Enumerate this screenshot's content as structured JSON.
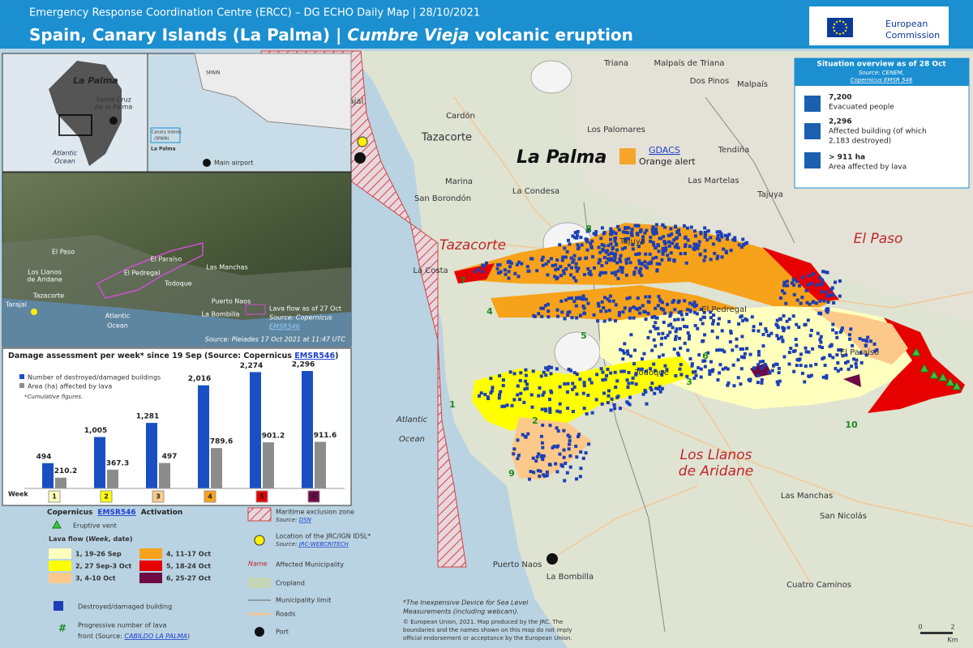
{
  "header": {
    "subtitle": "Emergency Response Coordination Centre (ERCC) – DG ECHO Daily Map | 28/10/2021",
    "title_start": "Spain, Canary Islands (La Palma) | ",
    "title_italic": "Cumbre Vieja",
    "title_end": " volcanic eruption",
    "logo_line1": "European",
    "logo_line2": "Commission"
  },
  "overview": {
    "title": "Situation overview as of 28 Oct",
    "source": "Source: CENEM,",
    "source_link": "Copernicus EMSR 546",
    "items": [
      {
        "value": "7,200",
        "label": "Evacuated people"
      },
      {
        "value": "2,296",
        "label": "Affected building (of which",
        "label2": "2,183 destroyed)"
      },
      {
        "value": "> 911 ha",
        "label": "Area affected by lava"
      }
    ]
  },
  "inset_map": {
    "island": "La Palma",
    "city_line1": "Santa Cruz",
    "city_line2": "de la Palma",
    "ocean_line1": "Atlantic",
    "ocean_line2": "Ocean",
    "airport": "Main airport",
    "country": "SPAIN",
    "canary_line1": "Canary Islands",
    "canary_line2": "(SPAIN)",
    "island_small": "La Palma"
  },
  "photo": {
    "labels": [
      "El Paso",
      "Los Llanos",
      "de Aridane",
      "Tazacorte",
      "El Paraíso",
      "Las Manchas",
      "El Pedregal",
      "Todoque",
      "Puerto Naos",
      "La Bombilla",
      "Atlantic",
      "Ocean",
      "Tarajal"
    ],
    "legend": "Lava flow as of 27 Oct",
    "legend_source": "Source: Copernicus",
    "legend_link": "EMSR546",
    "credit": "Source: Pleiades 17 Oct 2021 at 11:47 UTC"
  },
  "chart_data": {
    "type": "bar",
    "title": "Damage assessment per week* since 19 Sep (Source: Copernicus ",
    "title_link": "EMSR546",
    "title_end": ")",
    "note": "*Cumulative figures.",
    "x_label": "Week",
    "categories": [
      "1",
      "2",
      "3",
      "4",
      "5",
      "6"
    ],
    "series": [
      {
        "name": "Number of destroyed/damaged buildings",
        "color": "#1a4fc4",
        "values": [
          494,
          1005,
          1281,
          2016,
          2274,
          2296
        ],
        "value_labels": [
          "494",
          "1,005",
          "1,281",
          "2,016",
          "2,274",
          "2,296"
        ]
      },
      {
        "name": "Area (ha) affected by lava",
        "color": "#8c8c8c",
        "values": [
          210.2,
          367.3,
          497,
          789.6,
          901.2,
          911.6
        ]
      }
    ]
  },
  "map": {
    "title": "La Palma",
    "gdacs": "GDACS",
    "alert": "Orange alert",
    "places": [
      "Triana",
      "Malpaís de Triana",
      "Dos Pinos",
      "Malpaís",
      "Tarajal",
      "Cardón",
      "Los Palomares",
      "Tazacorte",
      "Tendiña",
      "Marina",
      "Las Martelas",
      "La Condesa",
      "Tajuya",
      "San Borondón",
      "Tajuya",
      "La Costa",
      "El Pedregal",
      "El Paraíso",
      "Todoque",
      "Las Manchas",
      "San Nicolás",
      "Puerto Naos",
      "La Bombilla",
      "Cuatro Caminos"
    ],
    "municipalities": [
      "Tazacorte",
      "El Paso",
      "Los Llanos",
      "de Aridane"
    ],
    "ocean_line1": "Atlantic",
    "ocean_line2": "Ocean",
    "lava_fronts": [
      "1",
      "2",
      "3",
      "4",
      "5",
      "6",
      "7",
      "8",
      "9",
      "10"
    ],
    "scale": [
      "0",
      "2",
      "Km"
    ]
  },
  "legend": {
    "title_start": "Copernicus",
    "title_link": "EMSR546",
    "title_end": "Activation",
    "vent": "Eruptive vent",
    "lava_title": "Lava flow (",
    "lava_week": "Week",
    "lava_date": ", date)",
    "lava": [
      {
        "label": "1, 19-26 Sep",
        "color": "#ffffbe"
      },
      {
        "label": "2, 27 Sep-3 Oct",
        "color": "#ffff00"
      },
      {
        "label": "3, 4-10 Oct",
        "color": "#fcc98a"
      },
      {
        "label": "4, 11-17 Oct",
        "color": "#f7a21b"
      },
      {
        "label": "5, 18-24 Oct",
        "color": "#e60000"
      },
      {
        "label": "6, 25-27 Oct",
        "color": "#6e0a45"
      }
    ],
    "building": "Destroyed/damaged building",
    "front_line1": "Progressive number of lava",
    "front_line2": "front (Source: ",
    "front_link": "CABILDO LA PALMA",
    "front_end": ")",
    "exclusion": "Maritime exclusion zone",
    "exclusion_source": "Source: ",
    "exclusion_link": "DSN",
    "idsl": "Location of the JRC/IGN IDSL*",
    "idsl_source": "Source: ",
    "idsl_link": "JRC-WEBCRITECH",
    "name_sample": "Name",
    "municipality": "Affected Municipality",
    "cropland": "Cropland",
    "limit": "Municipality limit",
    "roads": "Roads",
    "port": "Port"
  },
  "footer": {
    "note_line1": "*The Inexpensive Device for Sea Level",
    "note_line2": "Measurements (including webcam).",
    "copy_line1": "© European Union, 2021. Map produced by the JRC. The",
    "copy_line2": "boundaries and the names shown on this map do not imply",
    "copy_line3": "official endorsement or acceptance by the European Union."
  }
}
